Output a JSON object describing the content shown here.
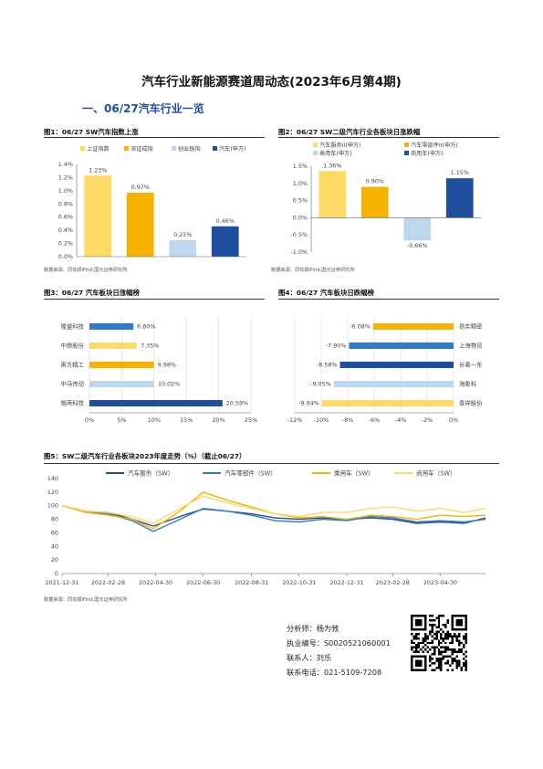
{
  "doc_title": "汽车行业新能源赛道周动态(2023年6月第4期)",
  "section_heading": "一、06/27汽车行业一览",
  "figures": {
    "fig1": {
      "title": "图1：06/27 SW汽车指数上涨",
      "source": "数据来源：同花顺iFind,国元证券研究所"
    },
    "fig2": {
      "title": "图2：06/27 SW二级汽车行业各板块日涨跌幅",
      "source": "数据来源：同花顺iFind,国元证券研究所"
    },
    "fig3": {
      "title": "图3：06/27 汽车板块日涨幅榜"
    },
    "fig4": {
      "title": "图4：06/27 汽车板块日跌幅榜"
    },
    "fig5": {
      "title": "图5：SW二级汽车行业各板块2023年度走势（%）（截止06/27）",
      "source": "数据来源：同花顺iFind,国元证券研究所"
    }
  },
  "colors": {
    "yellow_light": "#FFD966",
    "yellow": "#F5B300",
    "blue_light": "#BDD7EE",
    "blue_mid": "#2F7BC7",
    "navy": "#1F4E9C"
  },
  "analyst": {
    "name_line": "分析师：杨为敩",
    "cert_line": "执业编号：S0020521060001",
    "contact_line": "联系人：刘乐",
    "phone_line": "联系电话：021-5109-7208"
  },
  "chart_data": [
    {
      "id": "fig1",
      "type": "bar",
      "categories": [
        "上证指数",
        "深证成指",
        "创业板指",
        "汽车(申万)"
      ],
      "values": [
        1.23,
        0.97,
        0.25,
        0.46
      ],
      "data_labels": [
        "1.23%",
        "0.97%",
        "0.25%",
        "0.46%"
      ],
      "colors": [
        "#FFD966",
        "#F5B300",
        "#BDD7EE",
        "#1F4E9C"
      ],
      "ylim": [
        0,
        1.4
      ],
      "yticks": [
        "0.0%",
        "0.2%",
        "0.4%",
        "0.6%",
        "0.8%",
        "1.0%",
        "1.2%",
        "1.4%"
      ],
      "legend": "top"
    },
    {
      "id": "fig2",
      "type": "bar",
      "categories": [
        "汽车服务II(申万)",
        "汽车零部件II(申万)",
        "乘用车(申万)",
        "商用车(申万)"
      ],
      "values": [
        1.36,
        0.9,
        -0.66,
        1.15
      ],
      "data_labels": [
        "1.36%",
        "0.90%",
        "-0.66%",
        "1.15%"
      ],
      "colors": [
        "#FFD966",
        "#F5B300",
        "#BDD7EE",
        "#1F4E9C"
      ],
      "ylim": [
        -1.0,
        1.5
      ],
      "yticks": [
        "-1.0%",
        "-0.5%",
        "0.0%",
        "0.5%",
        "1.0%",
        "1.5%"
      ],
      "legend": "top"
    },
    {
      "id": "fig3",
      "type": "bar",
      "orientation": "horizontal",
      "categories": [
        "隆盛科技",
        "中鼎股份",
        "南方精工",
        "中马传动",
        "锡南科技"
      ],
      "values": [
        6.8,
        7.35,
        9.98,
        10.02,
        20.59
      ],
      "data_labels": [
        "6.80%",
        "7.35%",
        "9.98%",
        "10.02%",
        "20.59%"
      ],
      "colors": [
        "#2F7BC7",
        "#FFD966",
        "#F5B300",
        "#BDD7EE",
        "#1F4E9C"
      ],
      "xlim": [
        0,
        25
      ],
      "xticks": [
        "0%",
        "5%",
        "10%",
        "15%",
        "20%",
        "25%"
      ]
    },
    {
      "id": "fig4",
      "type": "bar",
      "orientation": "horizontal",
      "categories": [
        "易实精密",
        "上海物贸",
        "长春一东",
        "海象科",
        "泰祥股份"
      ],
      "values": [
        -6.08,
        -7.9,
        -8.58,
        -9.05,
        -9.94
      ],
      "data_labels": [
        "-6.08%",
        "-7.90%",
        "-8.58%",
        "-9.05%",
        "-9.94%"
      ],
      "colors": [
        "#F5B300",
        "#2F7BC7",
        "#1F4E9C",
        "#BDD7EE",
        "#FFD966"
      ],
      "xlim": [
        -12,
        0
      ],
      "xticks": [
        "-12%",
        "-10%",
        "-8%",
        "-6%",
        "-4%",
        "-2%",
        "0%"
      ]
    },
    {
      "id": "fig5",
      "type": "line",
      "x": [
        "2021-12-31",
        "2022-01-31",
        "2022-02-28",
        "2022-03-31",
        "2022-04-27",
        "2022-05-31",
        "2022-06-30",
        "2022-07-31",
        "2022-08-31",
        "2022-09-30",
        "2022-10-31",
        "2022-11-30",
        "2022-12-31",
        "2023-01-31",
        "2023-02-28",
        "2023-03-31",
        "2023-04-30",
        "2023-05-31",
        "2023-06-27"
      ],
      "xticks": [
        "2021-12-31",
        "2022-02-28",
        "2022-04-30",
        "2022-06-30",
        "2022-08-31",
        "2022-10-31",
        "2022-12-31",
        "2023-02-28",
        "2023-04-30"
      ],
      "ylim": [
        0,
        140
      ],
      "yticks": [
        "0",
        "20",
        "40",
        "60",
        "80",
        "100",
        "120",
        "140"
      ],
      "legend": "top",
      "series": [
        {
          "name": "汽车服务（SW）",
          "color": "#1F4E9C",
          "values": [
            100,
            92,
            90,
            80,
            70,
            84,
            95,
            92,
            88,
            82,
            80,
            82,
            80,
            82,
            80,
            74,
            76,
            74,
            82
          ]
        },
        {
          "name": "汽车零部件（SW）",
          "color": "#2F7BC7",
          "values": [
            100,
            90,
            88,
            78,
            62,
            80,
            96,
            92,
            86,
            78,
            76,
            80,
            78,
            84,
            82,
            76,
            78,
            76,
            80
          ]
        },
        {
          "name": "乘用车（SW）",
          "color": "#F5B300",
          "values": [
            100,
            90,
            86,
            80,
            66,
            92,
            120,
            108,
            98,
            88,
            82,
            84,
            80,
            86,
            84,
            80,
            86,
            84,
            86
          ]
        },
        {
          "name": "商用车（SW）",
          "color": "#FFD966",
          "values": [
            100,
            92,
            90,
            84,
            74,
            96,
            114,
            104,
            96,
            88,
            84,
            90,
            90,
            96,
            98,
            92,
            96,
            90,
            96
          ]
        }
      ]
    }
  ]
}
